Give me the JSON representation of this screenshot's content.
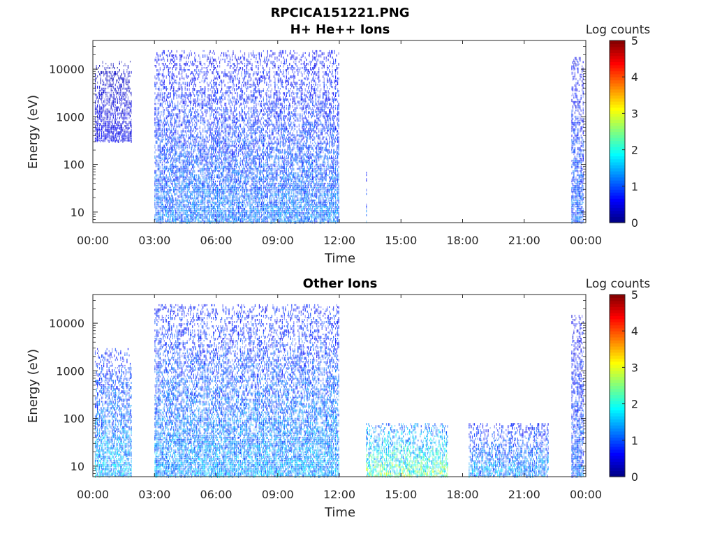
{
  "figure": {
    "title": "RPCICA151221.PNG"
  },
  "colorbar": {
    "label": "Log counts",
    "min": 0,
    "max": 5,
    "ticks": [
      "0",
      "1",
      "2",
      "3",
      "4",
      "5"
    ],
    "colormap": [
      "#00007f",
      "#0000ff",
      "#007fff",
      "#00ffff",
      "#7fff7f",
      "#ffff00",
      "#ff7f00",
      "#ff0000",
      "#7f0000"
    ]
  },
  "chart_data": [
    {
      "type": "heatmap",
      "title": "H+ He++ Ions",
      "xlabel": "Time",
      "ylabel": "Energy (eV)",
      "xlim_hours": [
        0,
        24
      ],
      "ylim": [
        6,
        40000
      ],
      "yscale": "log",
      "xticks": [
        "00:00",
        "03:00",
        "06:00",
        "09:00",
        "12:00",
        "15:00",
        "18:00",
        "21:00",
        "00:00"
      ],
      "yticks": [
        "10",
        "100",
        "1000",
        "10000"
      ],
      "segments": [
        {
          "start": 0.1,
          "end": 1.9,
          "emin": 300,
          "emax": 15000,
          "level": 0.5
        },
        {
          "start": 3.0,
          "end": 12.0,
          "emin": 6,
          "emax": 25000,
          "level": 1.1
        },
        {
          "start": 13.3,
          "end": 13.35,
          "emin": 6,
          "emax": 70,
          "level": 1.2
        },
        {
          "start": 23.3,
          "end": 23.9,
          "emin": 6,
          "emax": 18000,
          "level": 1.0
        }
      ]
    },
    {
      "type": "heatmap",
      "title": "Other Ions",
      "xlabel": "Time",
      "ylabel": "Energy (eV)",
      "xlim_hours": [
        0,
        24
      ],
      "ylim": [
        6,
        40000
      ],
      "yscale": "log",
      "xticks": [
        "00:00",
        "03:00",
        "06:00",
        "09:00",
        "12:00",
        "15:00",
        "18:00",
        "21:00",
        "00:00"
      ],
      "yticks": [
        "10",
        "100",
        "1000",
        "10000"
      ],
      "segments": [
        {
          "start": 0.1,
          "end": 1.9,
          "emin": 6,
          "emax": 3000,
          "level": 1.4
        },
        {
          "start": 3.0,
          "end": 12.0,
          "emin": 6,
          "emax": 25000,
          "level": 1.3
        },
        {
          "start": 13.3,
          "end": 17.3,
          "emin": 6,
          "emax": 80,
          "level": 2.2
        },
        {
          "start": 18.3,
          "end": 22.2,
          "emin": 6,
          "emax": 80,
          "level": 1.3
        },
        {
          "start": 23.3,
          "end": 23.9,
          "emin": 6,
          "emax": 15000,
          "level": 1.0
        }
      ]
    }
  ]
}
